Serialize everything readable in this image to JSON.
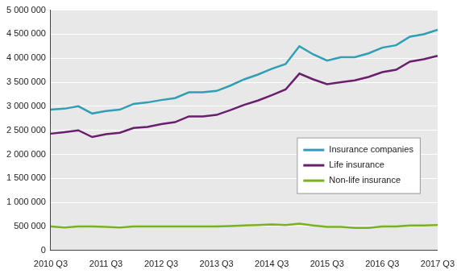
{
  "chart_data": {
    "type": "line",
    "categories": [
      "2010 Q3",
      null,
      null,
      null,
      "2011 Q3",
      null,
      null,
      null,
      "2012 Q3",
      null,
      null,
      null,
      "2013 Q3",
      null,
      null,
      null,
      "2014 Q3",
      null,
      null,
      null,
      "2015 Q3",
      null,
      null,
      null,
      "2016 Q3",
      null,
      null,
      null,
      "2017 Q3"
    ],
    "series": [
      {
        "name": "Insurance companies",
        "color": "#2e9fb6",
        "values": [
          2930000,
          2950000,
          3000000,
          2850000,
          2900000,
          2930000,
          3050000,
          3080000,
          3130000,
          3170000,
          3290000,
          3290000,
          3320000,
          3430000,
          3560000,
          3660000,
          3780000,
          3880000,
          4250000,
          4080000,
          3950000,
          4020000,
          4020000,
          4100000,
          4220000,
          4270000,
          4450000,
          4500000,
          4590000
        ]
      },
      {
        "name": "Life insurance",
        "color": "#6a1f6e",
        "values": [
          2430000,
          2460000,
          2500000,
          2360000,
          2420000,
          2450000,
          2550000,
          2570000,
          2630000,
          2670000,
          2790000,
          2790000,
          2820000,
          2920000,
          3030000,
          3120000,
          3230000,
          3350000,
          3680000,
          3560000,
          3460000,
          3500000,
          3540000,
          3610000,
          3710000,
          3760000,
          3930000,
          3980000,
          4050000
        ]
      },
      {
        "name": "Non-life insurance",
        "color": "#78b31e",
        "values": [
          500000,
          480000,
          500000,
          500000,
          490000,
          480000,
          500000,
          500000,
          500000,
          500000,
          500000,
          500000,
          500000,
          510000,
          520000,
          530000,
          540000,
          530000,
          560000,
          520000,
          490000,
          490000,
          470000,
          470000,
          500000,
          500000,
          520000,
          520000,
          530000
        ]
      }
    ],
    "ylim": [
      0,
      5000000
    ],
    "yticks": [
      0,
      {
        "value": 500000,
        "label": "500 000"
      },
      {
        "value": 1000000,
        "label": "1 000 000"
      },
      {
        "value": 1500000,
        "label": "1 500 000"
      },
      {
        "value": 2000000,
        "label": "2 000 000"
      },
      {
        "value": 2500000,
        "label": "2 500 000"
      },
      {
        "value": 3000000,
        "label": "3 000 000"
      },
      {
        "value": 3500000,
        "label": "3 500 000"
      },
      {
        "value": 4000000,
        "label": "4 000 000"
      },
      {
        "value": 4500000,
        "label": "4 500 000"
      },
      {
        "value": 5000000,
        "label": "5 000 000"
      }
    ],
    "grid": true,
    "legend": "lower right"
  }
}
